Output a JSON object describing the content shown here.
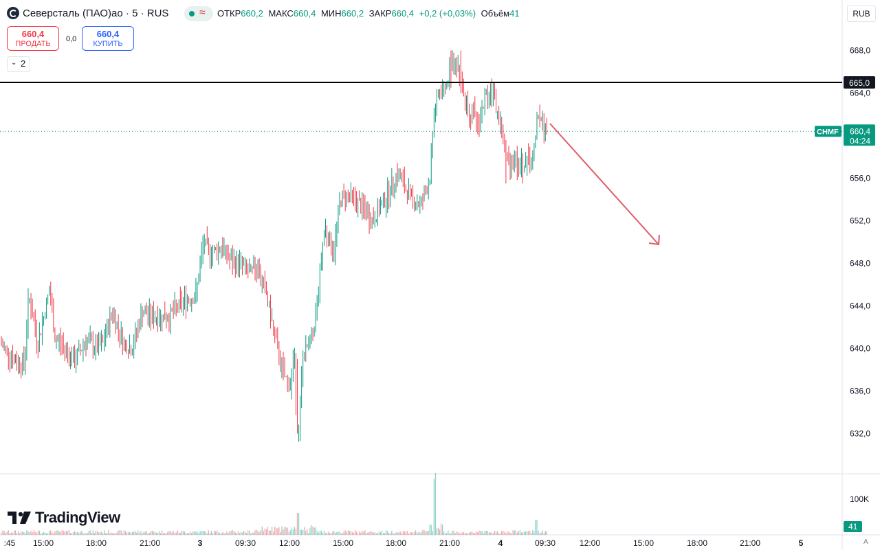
{
  "header": {
    "title": "Северсталь (ПАО)ао · 5 · RUS",
    "wave_icon": "≈",
    "ohlc": [
      {
        "label": "ОТКР",
        "value": "660,2"
      },
      {
        "label": "МАКС",
        "value": "660,4"
      },
      {
        "label": "МИН",
        "value": "660,2"
      },
      {
        "label": "ЗАКР",
        "value": "660,4"
      }
    ],
    "change": "+0,2 (+0,03%)",
    "volume_label": "Объём",
    "volume_value": "41"
  },
  "trade": {
    "sell_price": "660,4",
    "sell_label": "ПРОДАТЬ",
    "spread": "0,0",
    "buy_price": "660,4",
    "buy_label": "КУПИТЬ"
  },
  "indicators": {
    "chevron": "⌄",
    "count": "2"
  },
  "currency": "RUB",
  "price_axis": {
    "ticks": [
      "668,0",
      "664,0",
      "656,0",
      "652,0",
      "648,0",
      "644,0",
      "640,0",
      "636,0",
      "632,0"
    ],
    "tick_values": [
      668,
      664,
      656,
      652,
      648,
      644,
      640,
      636,
      632
    ],
    "hline_label": "665,0",
    "symbol_tag": "CHMF",
    "last_price": "660,4",
    "countdown": "04:24",
    "volume_tick": "100K",
    "volume_last": "41"
  },
  "time_axis": {
    "labels": [
      ":45",
      "15:00",
      "18:00",
      "21:00",
      "3",
      "09:30",
      "12:00",
      "15:00",
      "18:00",
      "21:00",
      "4",
      "09:30",
      "12:00",
      "15:00",
      "18:00",
      "21:00",
      "5"
    ],
    "bold": [
      "3",
      "4",
      "5"
    ]
  },
  "watermark": "TradingView",
  "auto_label": "A",
  "colors": {
    "up": "#089981",
    "down": "#f23645",
    "arrow": "#e05a68",
    "hline": "#000000"
  },
  "chart_data": {
    "type": "bar",
    "symbol": "CHMF",
    "interval": "5",
    "horizontal_line": 665.0,
    "last_price": 660.4,
    "ylim": [
      629.5,
      671.0
    ],
    "price_path": [
      [
        0,
        640.5
      ],
      [
        20,
        639
      ],
      [
        35,
        638.5
      ],
      [
        42,
        645
      ],
      [
        55,
        640.5
      ],
      [
        72,
        645.5
      ],
      [
        80,
        641
      ],
      [
        95,
        640
      ],
      [
        108,
        638.8
      ],
      [
        125,
        640.8
      ],
      [
        140,
        640
      ],
      [
        150,
        640.5
      ],
      [
        163,
        643.5
      ],
      [
        180,
        640.5
      ],
      [
        192,
        640
      ],
      [
        207,
        643.5
      ],
      [
        220,
        643
      ],
      [
        245,
        643
      ],
      [
        268,
        644.5
      ],
      [
        285,
        645
      ],
      [
        296,
        650
      ],
      [
        305,
        649
      ],
      [
        322,
        649.5
      ],
      [
        338,
        648
      ],
      [
        350,
        648
      ],
      [
        363,
        647
      ],
      [
        375,
        647.5
      ],
      [
        388,
        645
      ],
      [
        400,
        641
      ],
      [
        412,
        637.5
      ],
      [
        422,
        636.5
      ],
      [
        428,
        639.5
      ],
      [
        432,
        633
      ],
      [
        435,
        632
      ],
      [
        440,
        639
      ],
      [
        450,
        640.5
      ],
      [
        458,
        642.5
      ],
      [
        465,
        647
      ],
      [
        472,
        651.5
      ],
      [
        485,
        649
      ],
      [
        495,
        654
      ],
      [
        505,
        654.5
      ],
      [
        515,
        654
      ],
      [
        530,
        653
      ],
      [
        542,
        652
      ],
      [
        555,
        653.5
      ],
      [
        568,
        655
      ],
      [
        578,
        656.5
      ],
      [
        590,
        655
      ],
      [
        600,
        654
      ],
      [
        612,
        653.5
      ],
      [
        625,
        656
      ],
      [
        632,
        662.5
      ],
      [
        640,
        664
      ],
      [
        650,
        664.5
      ],
      [
        657,
        667
      ],
      [
        665,
        667
      ],
      [
        670,
        665.5
      ],
      [
        678,
        663
      ],
      [
        688,
        662
      ],
      [
        695,
        661
      ],
      [
        705,
        663.5
      ],
      [
        712,
        664.5
      ],
      [
        720,
        663
      ],
      [
        730,
        660.5
      ],
      [
        738,
        657.5
      ],
      [
        748,
        658
      ],
      [
        755,
        657
      ],
      [
        762,
        657.5
      ],
      [
        770,
        657.5
      ],
      [
        778,
        658.5
      ],
      [
        782,
        662.5
      ],
      [
        790,
        661
      ],
      [
        796,
        660.4
      ]
    ],
    "annotation": {
      "type": "arrow",
      "direction": "down"
    }
  }
}
